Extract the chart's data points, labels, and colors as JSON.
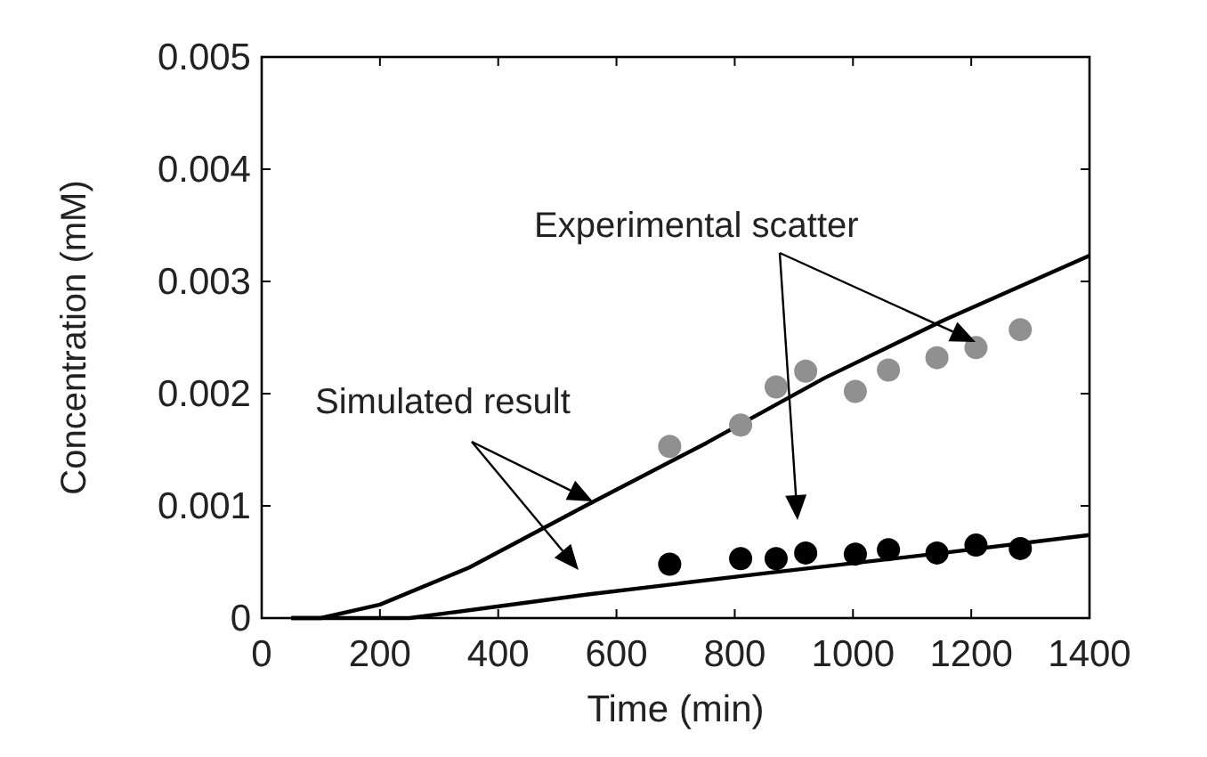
{
  "chart_data": {
    "type": "scatter",
    "xlabel": "Time (min)",
    "ylabel": "Concentration (mM)",
    "xlim": [
      0,
      1400
    ],
    "xticks": [
      0,
      200,
      400,
      600,
      800,
      1000,
      1200,
      1400
    ],
    "ylim": [
      0,
      0.005
    ],
    "yticks": [
      0,
      0.001,
      0.002,
      0.003,
      0.004,
      0.005
    ],
    "grid": false,
    "annotations": [
      {
        "text": "Simulated result",
        "x": 560,
        "y": 0.00104
      },
      "Experimental scatter"
    ],
    "series": [
      {
        "type": "line",
        "color": "#000000",
        "line_style": "solid",
        "marker": "none",
        "x": [
          50,
          100,
          200,
          351,
          551,
          752,
          952,
          1152,
          1400
        ],
        "values": [
          0,
          0,
          0.00012,
          0.00045,
          0.00101,
          0.00156,
          0.00214,
          0.00265,
          0.00323
        ]
      },
      {
        "type": "line",
        "color": "#000000",
        "line_style": "solid",
        "marker": "none",
        "x": [
          50,
          250,
          551,
          852,
          1152,
          1400
        ],
        "values": [
          0,
          0,
          0.00021,
          0.0004,
          0.00058,
          0.00074
        ]
      },
      {
        "color": "#909090",
        "marker": "circle",
        "x": [
          690,
          810,
          870,
          920,
          1004,
          1060,
          1142,
          1208,
          1283
        ],
        "values": [
          0.00153,
          0.00172,
          0.00206,
          0.0022,
          0.00202,
          0.00221,
          0.00232,
          0.00241,
          0.00257
        ]
      },
      {
        "color": "#000000",
        "marker": "circle",
        "x": [
          690,
          810,
          870,
          920,
          1004,
          1060,
          1142,
          1208,
          1283
        ],
        "values": [
          0.00048,
          0.00053,
          0.00053,
          0.00058,
          0.00057,
          0.00061,
          0.00058,
          0.00065,
          0.00062
        ]
      }
    ]
  }
}
